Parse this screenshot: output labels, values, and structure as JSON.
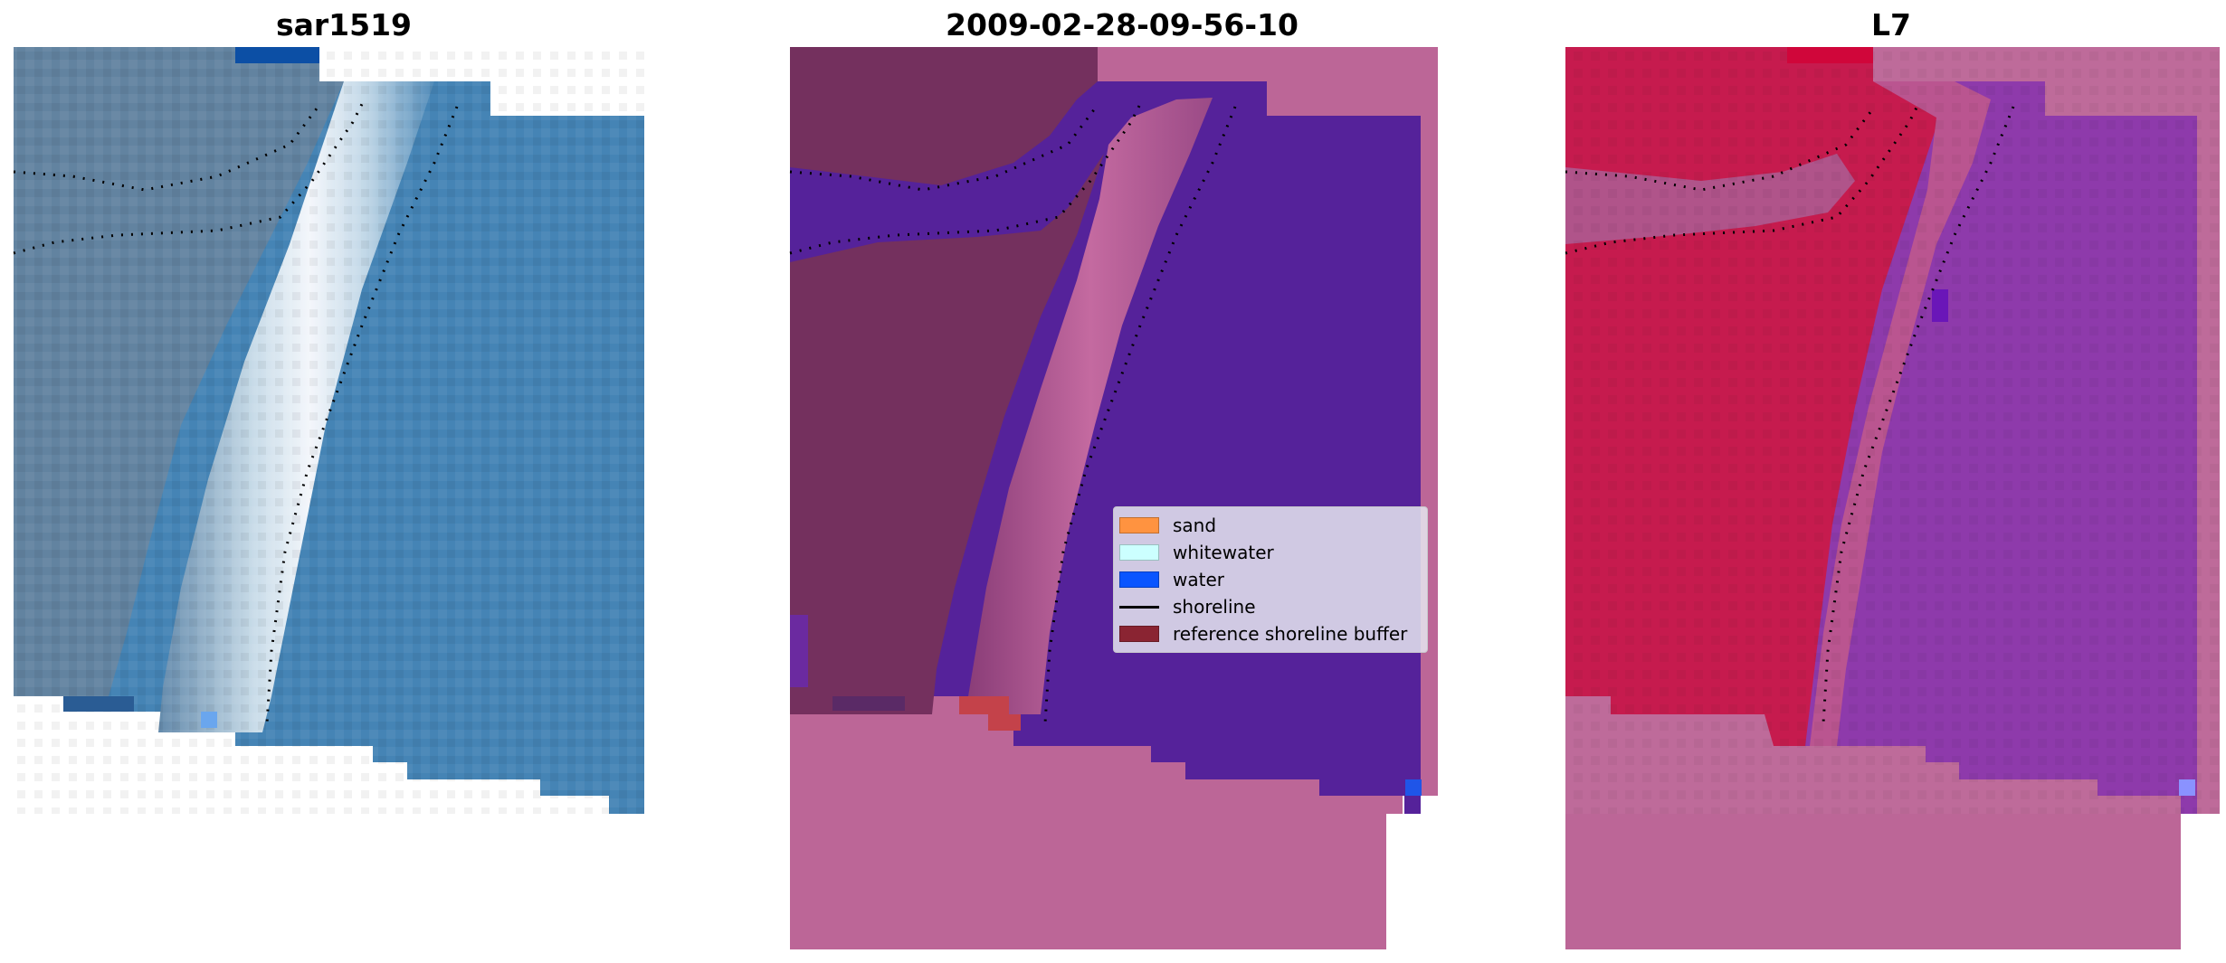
{
  "panels": [
    {
      "id": "rgb",
      "title": "sar1519"
    },
    {
      "id": "classified",
      "title": "2009-02-28-09-56-10"
    },
    {
      "id": "mndwi",
      "title": "L7"
    }
  ],
  "legend": {
    "items": [
      {
        "label": "sand",
        "type": "patch",
        "color": "#ff9340"
      },
      {
        "label": "whitewater",
        "type": "patch",
        "color": "#ccffff"
      },
      {
        "label": "water",
        "type": "patch",
        "color": "#0a55ff"
      },
      {
        "label": "shoreline",
        "type": "line",
        "color": "#000000"
      },
      {
        "label": "reference shoreline buffer",
        "type": "patch",
        "color": "#8a2432"
      }
    ]
  },
  "colors": {
    "ocean_rgb": "#3a7fb0",
    "nodata_pink": "#bc6697",
    "classified_water": "#55229a",
    "classified_land": "#74305e",
    "index_land": "#c41448",
    "index_water": "#8a34a8"
  }
}
